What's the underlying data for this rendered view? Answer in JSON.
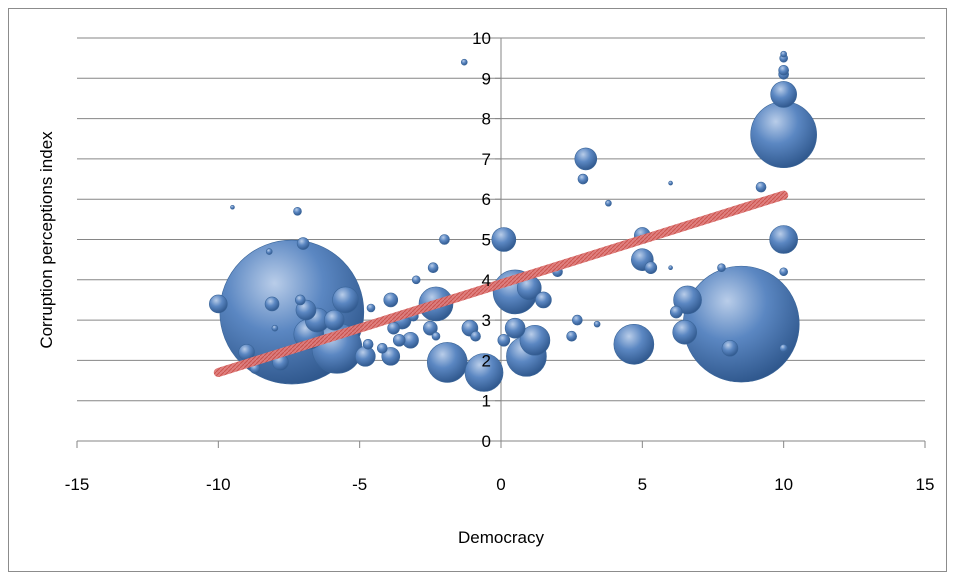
{
  "chart_data": {
    "type": "bubble",
    "xlabel": "Democracy",
    "ylabel": "Corruption perceptions index",
    "xlim": [
      -15,
      15
    ],
    "ylim": [
      0,
      10
    ],
    "x_ticks": [
      "-15",
      "-10",
      "-5",
      "0",
      "5",
      "10",
      "15"
    ],
    "y_ticks": [
      "0",
      "1",
      "2",
      "3",
      "4",
      "5",
      "6",
      "7",
      "8",
      "9",
      "10"
    ],
    "grid": "horizontal",
    "legend": "none",
    "colors": {
      "bubble": "#4f81bd",
      "trendline": "#d96b6b"
    },
    "trendline": {
      "x": [
        -10,
        10
      ],
      "y": [
        1.7,
        6.1
      ]
    },
    "points": [
      {
        "x": -7.4,
        "y": 3.2,
        "r": 72
      },
      {
        "x": 8.5,
        "y": 2.9,
        "r": 58
      },
      {
        "x": 10,
        "y": 7.6,
        "r": 33
      },
      {
        "x": 10,
        "y": 8.6,
        "r": 13
      },
      {
        "x": 10,
        "y": 9.1,
        "r": 5
      },
      {
        "x": 10,
        "y": 9.2,
        "r": 5
      },
      {
        "x": 10,
        "y": 9.5,
        "r": 4
      },
      {
        "x": 10,
        "y": 9.6,
        "r": 3
      },
      {
        "x": 10,
        "y": 5.0,
        "r": 14
      },
      {
        "x": 10,
        "y": 4.2,
        "r": 4
      },
      {
        "x": 10,
        "y": 2.3,
        "r": 4
      },
      {
        "x": 9.2,
        "y": 6.3,
        "r": 5
      },
      {
        "x": 8.1,
        "y": 2.3,
        "r": 8
      },
      {
        "x": 7.8,
        "y": 4.3,
        "r": 4
      },
      {
        "x": 6.6,
        "y": 3.5,
        "r": 14
      },
      {
        "x": 6.5,
        "y": 2.7,
        "r": 12
      },
      {
        "x": 6.2,
        "y": 3.2,
        "r": 6
      },
      {
        "x": 6.0,
        "y": 6.4,
        "r": 2
      },
      {
        "x": 6.0,
        "y": 4.3,
        "r": 2
      },
      {
        "x": 5.3,
        "y": 4.3,
        "r": 6
      },
      {
        "x": 5.0,
        "y": 4.5,
        "r": 11
      },
      {
        "x": 5.0,
        "y": 5.1,
        "r": 8
      },
      {
        "x": 4.7,
        "y": 2.4,
        "r": 20
      },
      {
        "x": 3.8,
        "y": 5.9,
        "r": 3
      },
      {
        "x": 3.4,
        "y": 2.9,
        "r": 3
      },
      {
        "x": 3.0,
        "y": 7.0,
        "r": 11
      },
      {
        "x": 2.9,
        "y": 6.5,
        "r": 5
      },
      {
        "x": 2.7,
        "y": 3.0,
        "r": 5
      },
      {
        "x": 2.5,
        "y": 2.6,
        "r": 5
      },
      {
        "x": 2.0,
        "y": 4.2,
        "r": 5
      },
      {
        "x": 1.5,
        "y": 3.5,
        "r": 8
      },
      {
        "x": 1.2,
        "y": 2.5,
        "r": 15
      },
      {
        "x": 1.0,
        "y": 3.8,
        "r": 12
      },
      {
        "x": 0.9,
        "y": 2.1,
        "r": 20
      },
      {
        "x": 0.5,
        "y": 3.7,
        "r": 22
      },
      {
        "x": 0.5,
        "y": 2.8,
        "r": 10
      },
      {
        "x": 0.1,
        "y": 5.0,
        "r": 12
      },
      {
        "x": 0.1,
        "y": 2.5,
        "r": 6
      },
      {
        "x": -0.6,
        "y": 1.7,
        "r": 19
      },
      {
        "x": -0.9,
        "y": 2.6,
        "r": 5
      },
      {
        "x": -1.1,
        "y": 2.8,
        "r": 8
      },
      {
        "x": -1.3,
        "y": 9.4,
        "r": 3
      },
      {
        "x": -1.9,
        "y": 1.95,
        "r": 20
      },
      {
        "x": -2.0,
        "y": 5.0,
        "r": 5
      },
      {
        "x": -2.3,
        "y": 3.4,
        "r": 17
      },
      {
        "x": -2.4,
        "y": 4.3,
        "r": 5
      },
      {
        "x": -2.5,
        "y": 2.8,
        "r": 7
      },
      {
        "x": -2.3,
        "y": 2.6,
        "r": 4
      },
      {
        "x": -3.0,
        "y": 4.0,
        "r": 4
      },
      {
        "x": -3.1,
        "y": 3.1,
        "r": 5
      },
      {
        "x": -3.2,
        "y": 2.5,
        "r": 8
      },
      {
        "x": -3.5,
        "y": 3.0,
        "r": 9
      },
      {
        "x": -3.6,
        "y": 2.5,
        "r": 6
      },
      {
        "x": -3.8,
        "y": 2.8,
        "r": 6
      },
      {
        "x": -3.9,
        "y": 2.1,
        "r": 9
      },
      {
        "x": -3.9,
        "y": 3.5,
        "r": 7
      },
      {
        "x": -4.2,
        "y": 2.3,
        "r": 5
      },
      {
        "x": -4.6,
        "y": 3.3,
        "r": 4
      },
      {
        "x": -4.7,
        "y": 2.4,
        "r": 5
      },
      {
        "x": -4.8,
        "y": 2.1,
        "r": 10
      },
      {
        "x": -5.5,
        "y": 3.5,
        "r": 13
      },
      {
        "x": -5.8,
        "y": 2.3,
        "r": 25
      },
      {
        "x": -5.9,
        "y": 3.0,
        "r": 10
      },
      {
        "x": -6.5,
        "y": 3.0,
        "r": 12
      },
      {
        "x": -6.8,
        "y": 2.65,
        "r": 15
      },
      {
        "x": -6.9,
        "y": 3.25,
        "r": 10
      },
      {
        "x": -7.2,
        "y": 5.7,
        "r": 4
      },
      {
        "x": -7.0,
        "y": 4.9,
        "r": 6
      },
      {
        "x": -7.1,
        "y": 3.5,
        "r": 5
      },
      {
        "x": -7.8,
        "y": 1.95,
        "r": 8
      },
      {
        "x": -8.2,
        "y": 4.7,
        "r": 3
      },
      {
        "x": -8.1,
        "y": 3.4,
        "r": 7
      },
      {
        "x": -8.0,
        "y": 2.8,
        "r": 3
      },
      {
        "x": -8.7,
        "y": 1.8,
        "r": 5
      },
      {
        "x": -9.0,
        "y": 2.2,
        "r": 8
      },
      {
        "x": -9.5,
        "y": 5.8,
        "r": 2
      },
      {
        "x": -10.0,
        "y": 3.4,
        "r": 9
      }
    ]
  }
}
